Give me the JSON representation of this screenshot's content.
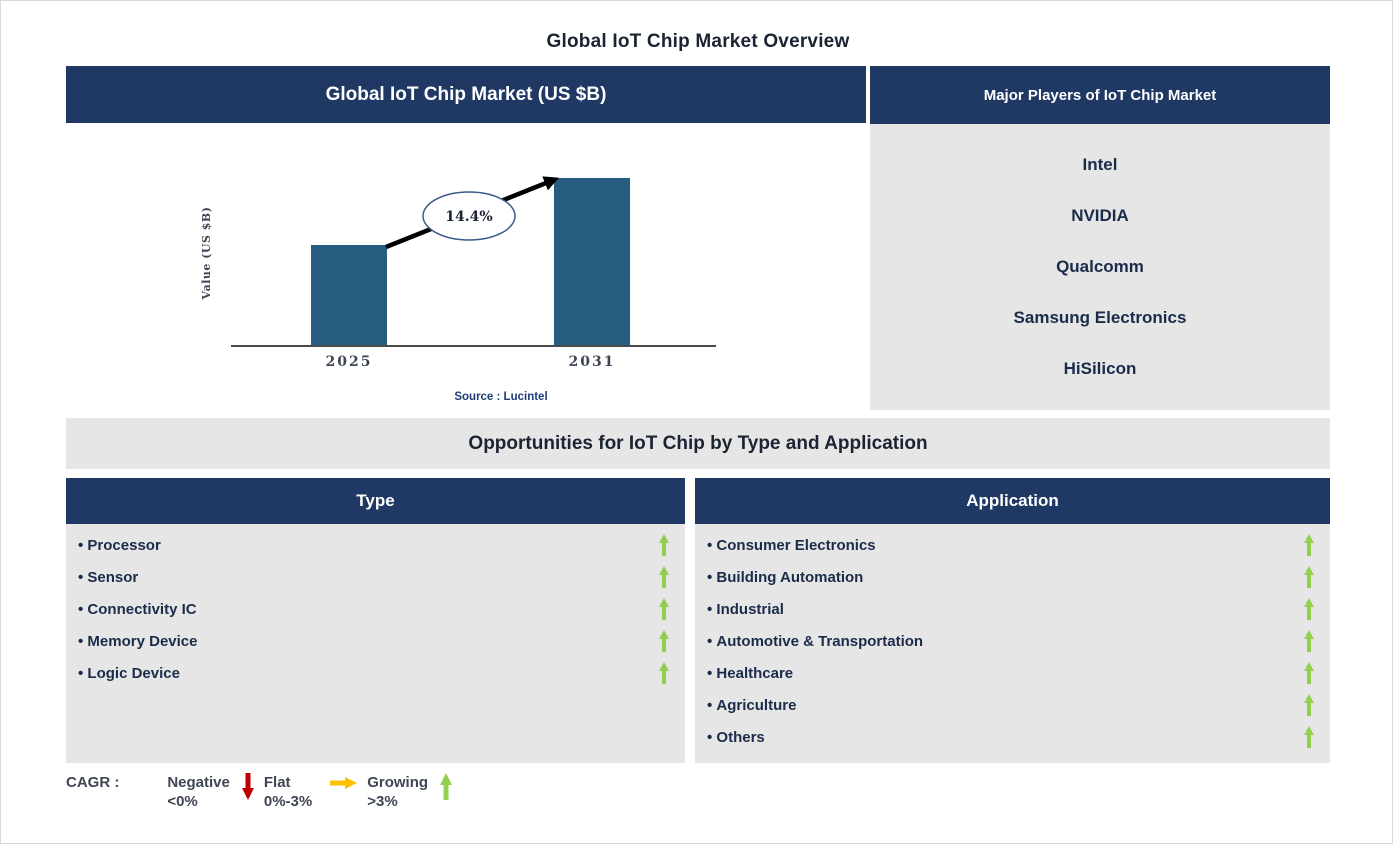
{
  "page": {
    "title": "Global IoT Chip Market Overview"
  },
  "colors": {
    "navy_header": "#1f3864",
    "panel_gray": "#e6e6e6",
    "bar_blue": "#275d80",
    "growing_green": "#92d050",
    "flat_yellow": "#ffc000",
    "negative_red": "#c00000",
    "source_navy": "#1f3e75"
  },
  "market_panel": {
    "header": "Global IoT Chip Market (US $B)",
    "source": "Source : Lucintel"
  },
  "chart_data": {
    "type": "bar",
    "title": "Global IoT Chip Market (US $B)",
    "categories": [
      "2025",
      "2031"
    ],
    "values_relative": [
      0.6,
      1.0
    ],
    "ylabel": "Value (US $B)",
    "y_axis_numeric_labels": false,
    "grid": false,
    "cagr_label": "14.4%",
    "annotation": "14.4%",
    "bar_color": "#275d80",
    "source": "Source : Lucintel"
  },
  "players_panel": {
    "header": "Major Players of IoT Chip Market",
    "players": [
      "Intel",
      "NVIDIA",
      "Qualcomm",
      "Samsung Electronics",
      "HiSilicon"
    ]
  },
  "opportunities": {
    "banner": "Opportunities for IoT Chip by Type and Application",
    "type_panel": {
      "header": "Type",
      "items": [
        {
          "label": "Processor",
          "trend": "growing"
        },
        {
          "label": "Sensor",
          "trend": "growing"
        },
        {
          "label": "Connectivity IC",
          "trend": "growing"
        },
        {
          "label": "Memory Device",
          "trend": "growing"
        },
        {
          "label": "Logic Device",
          "trend": "growing"
        }
      ]
    },
    "application_panel": {
      "header": "Application",
      "items": [
        {
          "label": "Consumer Electronics",
          "trend": "growing"
        },
        {
          "label": "Building Automation",
          "trend": "growing"
        },
        {
          "label": "Industrial",
          "trend": "growing"
        },
        {
          "label": "Automotive & Transportation",
          "trend": "growing"
        },
        {
          "label": "Healthcare",
          "trend": "growing"
        },
        {
          "label": "Agriculture",
          "trend": "growing"
        },
        {
          "label": "Others",
          "trend": "growing"
        }
      ]
    }
  },
  "legend": {
    "label": "CAGR :",
    "entries": [
      {
        "name": "Negative",
        "range": "<0%",
        "arrow": "down",
        "color": "#c00000"
      },
      {
        "name": "Flat",
        "range": "0%-3%",
        "arrow": "right",
        "color": "#ffc000"
      },
      {
        "name": "Growing",
        "range": ">3%",
        "arrow": "up",
        "color": "#92d050"
      }
    ]
  }
}
